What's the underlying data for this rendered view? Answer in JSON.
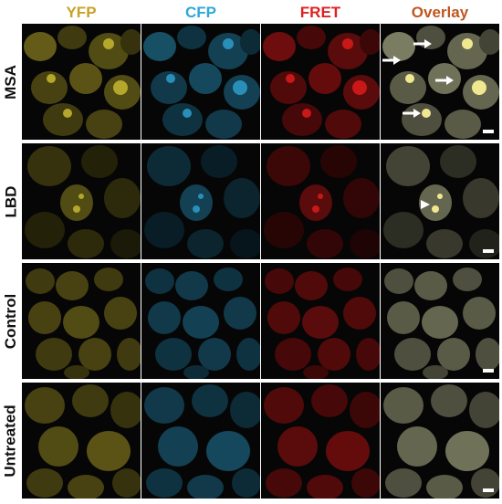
{
  "columns": [
    {
      "label": "YFP",
      "color": "#c9a227"
    },
    {
      "label": "CFP",
      "color": "#2ea8d8"
    },
    {
      "label": "FRET",
      "color": "#e02020"
    },
    {
      "label": "Overlay",
      "color": "#c0561e"
    }
  ],
  "rows": [
    {
      "label": "MSA",
      "arrows": 4,
      "arrowheads": 0
    },
    {
      "label": "LBD",
      "arrows": 0,
      "arrowheads": 1
    },
    {
      "label": "Control",
      "arrows": 0,
      "arrowheads": 0
    },
    {
      "label": "Untreated",
      "arrows": 0,
      "arrowheads": 0
    }
  ],
  "channel_colors": {
    "yfp": "#b5a62c",
    "cfp": "#2a8fb8",
    "fret": "#c81818",
    "overlay": "#b9bd93",
    "highlight": "#f0e890"
  }
}
